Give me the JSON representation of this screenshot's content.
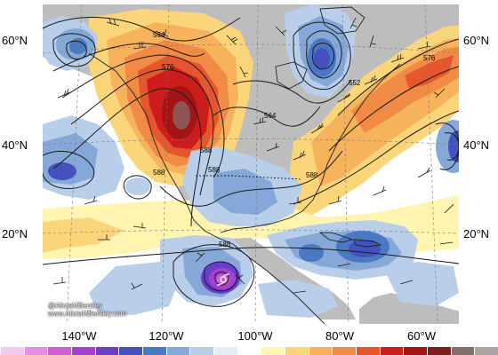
{
  "map": {
    "lat_labels": [
      "60°N",
      "40°N",
      "20°N"
    ],
    "lon_labels": [
      "140°W",
      "120°W",
      "100°W",
      "80°W",
      "60°W"
    ],
    "contour_labels": [
      "564",
      "576",
      "588",
      "588",
      "588",
      "564",
      "552",
      "576",
      "588",
      "588"
    ],
    "credit_line1": "@AliciaMBentley",
    "credit_line2": "www.AliciaMBentley.com"
  },
  "colorbar": {
    "colors": [
      "#f0c8f0",
      "#e58ee5",
      "#cd5fd0",
      "#a63fd4",
      "#6a3ec9",
      "#4452bd",
      "#4a78c3",
      "#86a8d8",
      "#b9cfe9",
      "#e3ecf7",
      "#ffffff",
      "#fff4b0",
      "#fbd57a",
      "#f7b25c",
      "#f08a44",
      "#e5562f",
      "#cc1d1d",
      "#a31515",
      "#7d1f1f",
      "#846d6d",
      "#ada3a3"
    ]
  },
  "colors": {
    "land": "#bdbdbd",
    "contour": "#1a1a1a",
    "coast": "#222222",
    "grid": "#777777"
  }
}
